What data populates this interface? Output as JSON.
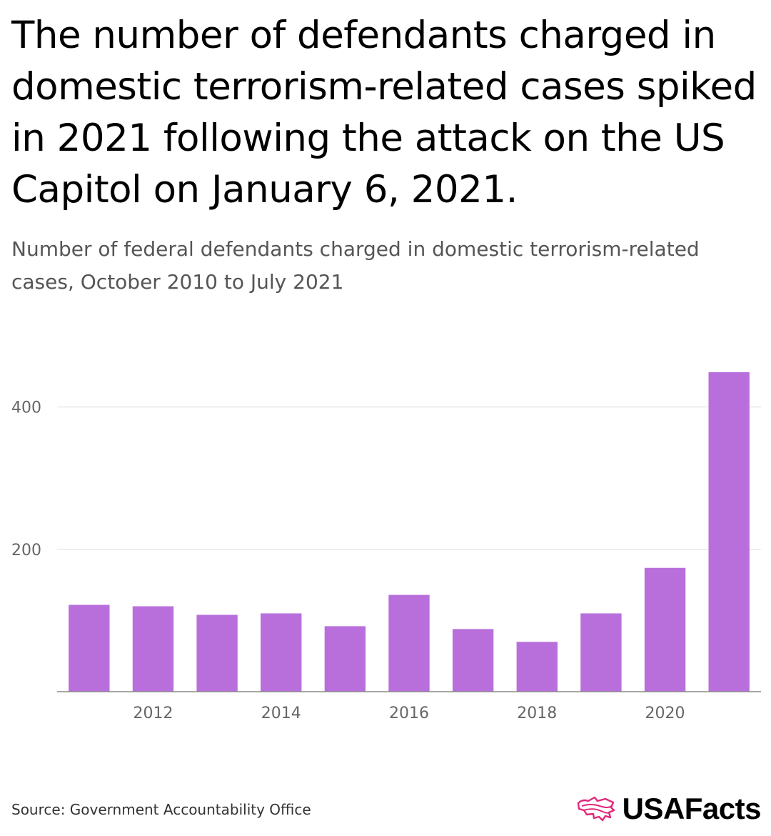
{
  "header": {
    "title": "The number of defendants charged in domestic terrorism-related cases spiked in 2021 following the attack on the US Capitol on January 6, 2021.",
    "subtitle": "Number of federal defendants charged in domestic terrorism-related cases, October 2010 to July 2021"
  },
  "footer": {
    "source": "Source: Government Accountability Office",
    "brand": "USAFacts"
  },
  "colors": {
    "bar": "#b86fdc",
    "grid": "#dddddd",
    "axis": "#888888",
    "brand_accent": "#e0287a"
  },
  "chart_data": {
    "type": "bar",
    "title": "Number of federal defendants charged in domestic terrorism-related cases, October 2010 to July 2021",
    "xlabel": "",
    "ylabel": "",
    "categories": [
      "2011",
      "2012",
      "2013",
      "2014",
      "2015",
      "2016",
      "2017",
      "2018",
      "2019",
      "2020",
      "2021"
    ],
    "values": [
      122,
      120,
      108,
      110,
      92,
      136,
      88,
      70,
      110,
      174,
      449
    ],
    "ylim": [
      0,
      480
    ],
    "yticks": [
      200,
      400
    ],
    "xtick_labels": [
      "2012",
      "2014",
      "2016",
      "2018",
      "2020"
    ],
    "grid": true,
    "legend": "none"
  }
}
